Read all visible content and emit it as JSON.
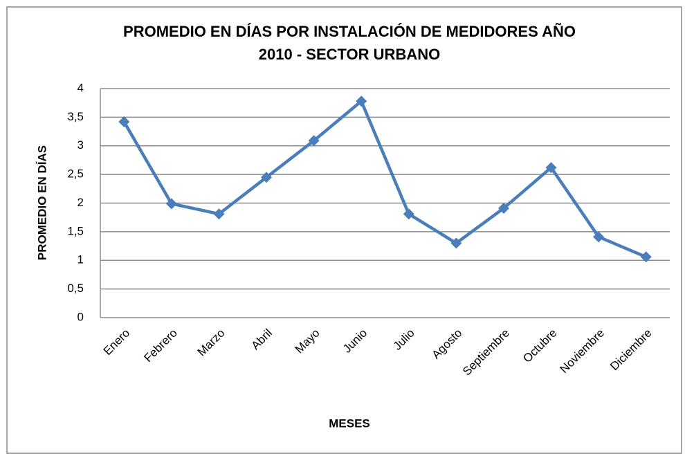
{
  "chart_data": {
    "type": "line",
    "title": [
      "PROMEDIO EN DÍAS POR INSTALACIÓN DE MEDIDORES AÑO",
      "2010 - SECTOR URBANO"
    ],
    "x_label": "MESES",
    "y_label": "PROMEDIO EN DÍAS",
    "categories": [
      "Enero",
      "Febrero",
      "Marzo",
      "Abril",
      "Mayo",
      "Junio",
      "Julio",
      "Agosto",
      "Septiembre",
      "Octubre",
      "Noviembre",
      "Diciembre"
    ],
    "values": [
      3.42,
      1.99,
      1.81,
      2.45,
      3.09,
      3.78,
      1.81,
      1.3,
      1.91,
      2.62,
      1.41,
      1.06
    ],
    "color": "#4a7ebb",
    "ylim": [
      0,
      4
    ],
    "yticks": [
      0,
      {
        "value": 0.5,
        "label": "0,5"
      },
      1,
      {
        "value": 1.5,
        "label": "1,5"
      },
      2,
      {
        "value": 2.5,
        "label": "2,5"
      },
      3,
      {
        "value": 3.5,
        "label": "3,5"
      },
      4
    ],
    "grid": true
  }
}
